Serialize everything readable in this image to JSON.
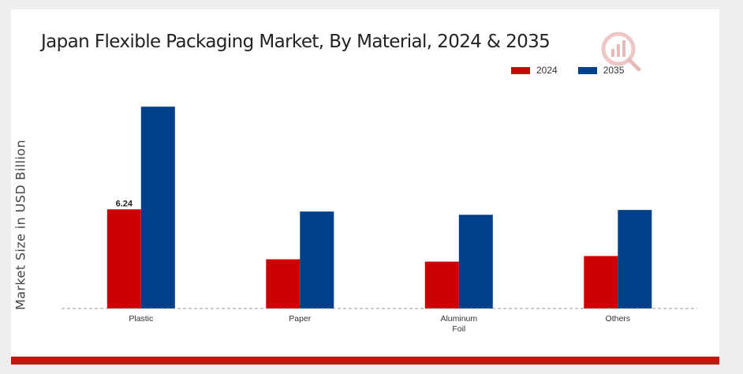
{
  "chart_data": {
    "type": "bar",
    "title": "Japan Flexible Packaging Market, By Material, 2024 & 2035",
    "xlabel": "",
    "ylabel": "Market Size in USD Billion",
    "categories": [
      [
        "Plastic"
      ],
      [
        "Paper"
      ],
      [
        "Aluminum",
        "Foil"
      ],
      [
        "Others"
      ]
    ],
    "series": [
      {
        "name": "2024",
        "color": "#cc0000",
        "values": [
          6.24,
          3.1,
          2.95,
          3.3
        ]
      },
      {
        "name": "2035",
        "color": "#003f8a",
        "values": [
          12.7,
          6.1,
          5.9,
          6.2
        ]
      }
    ],
    "data_labels": [
      {
        "series": 0,
        "category": 0,
        "text": "6.24"
      }
    ],
    "ylim": [
      0,
      14
    ],
    "grid": false,
    "legend_position": "top-right"
  },
  "logo": {
    "icon": "market-research-logo-icon",
    "color": "#cc2222"
  }
}
